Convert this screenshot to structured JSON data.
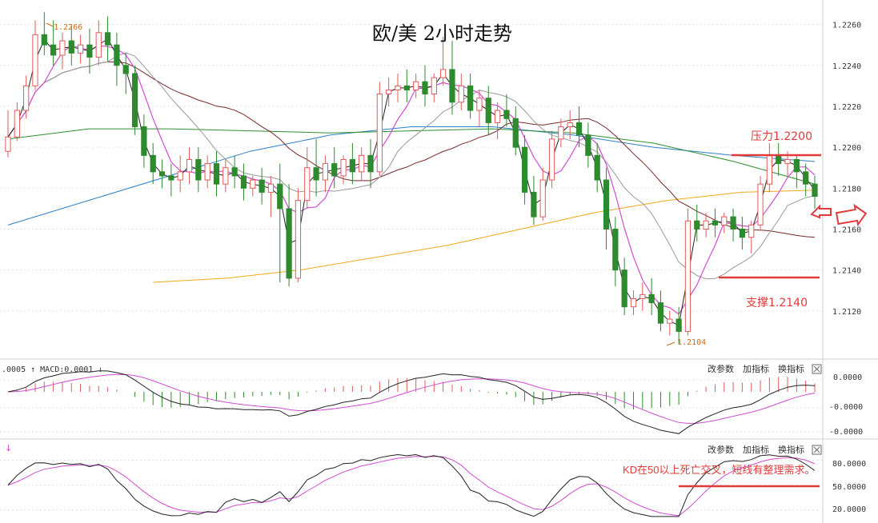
{
  "title": "欧/美 2小时走势",
  "chart_data": [
    {
      "type": "candlestick",
      "title": "欧/美 2小时走势",
      "ylim": [
        1.21,
        1.227
      ],
      "y_ticks": [
        "1.2260",
        "1.2240",
        "1.2220",
        "1.2200",
        "1.2180",
        "1.2160",
        "1.2140",
        "1.2120"
      ],
      "annotations": {
        "high": "1.2266",
        "low": "1.2104",
        "resistance": "压力1.2200",
        "support": "支撑1.2140"
      },
      "resistance_value": 1.22,
      "support_value": 1.214,
      "candles": [
        [
          1.2198,
          1.2218,
          1.2205,
          1.2195
        ],
        [
          1.2205,
          1.2222,
          1.2218,
          1.2203
        ],
        [
          1.2218,
          1.2235,
          1.223,
          1.2214
        ],
        [
          1.223,
          1.2262,
          1.2255,
          1.2228
        ],
        [
          1.2255,
          1.2266,
          1.225,
          1.2245
        ],
        [
          1.225,
          1.2262,
          1.2245,
          1.224
        ],
        [
          1.2245,
          1.2256,
          1.2252,
          1.2238
        ],
        [
          1.2252,
          1.226,
          1.2246,
          1.224
        ],
        [
          1.2246,
          1.2255,
          1.225,
          1.2241
        ],
        [
          1.225,
          1.2258,
          1.2244,
          1.2236
        ],
        [
          1.2244,
          1.2262,
          1.2256,
          1.224
        ],
        [
          1.2256,
          1.2264,
          1.225,
          1.2242
        ],
        [
          1.225,
          1.2256,
          1.224,
          1.223
        ],
        [
          1.224,
          1.2246,
          1.2236,
          1.2226
        ],
        [
          1.2236,
          1.224,
          1.221,
          1.2206
        ],
        [
          1.221,
          1.2216,
          1.2196,
          1.219
        ],
        [
          1.2196,
          1.2202,
          1.2188,
          1.2182
        ],
        [
          1.2188,
          1.2194,
          1.2186,
          1.218
        ],
        [
          1.2186,
          1.2192,
          1.2184,
          1.2176
        ],
        [
          1.2184,
          1.2196,
          1.2188,
          1.2178
        ],
        [
          1.2188,
          1.22,
          1.2194,
          1.2182
        ],
        [
          1.2194,
          1.22,
          1.2184,
          1.2178
        ],
        [
          1.2184,
          1.2196,
          1.2192,
          1.218
        ],
        [
          1.2192,
          1.2198,
          1.2182,
          1.2176
        ],
        [
          1.2182,
          1.2194,
          1.219,
          1.2178
        ],
        [
          1.219,
          1.2196,
          1.2186,
          1.218
        ],
        [
          1.2186,
          1.2192,
          1.218,
          1.2174
        ],
        [
          1.218,
          1.2186,
          1.2184,
          1.2176
        ],
        [
          1.2184,
          1.219,
          1.2178,
          1.2172
        ],
        [
          1.2178,
          1.2186,
          1.2182,
          1.2166
        ],
        [
          1.2182,
          1.2192,
          1.217,
          1.2134
        ],
        [
          1.217,
          1.2182,
          1.2136,
          1.2132
        ],
        [
          1.2136,
          1.218,
          1.2174,
          1.2134
        ],
        [
          1.2174,
          1.22,
          1.219,
          1.217
        ],
        [
          1.219,
          1.2204,
          1.2184,
          1.2176
        ],
        [
          1.2184,
          1.2196,
          1.2192,
          1.2178
        ],
        [
          1.2192,
          1.22,
          1.2186,
          1.218
        ],
        [
          1.2186,
          1.2196,
          1.2194,
          1.2182
        ],
        [
          1.2194,
          1.2202,
          1.2188,
          1.2182
        ],
        [
          1.2188,
          1.22,
          1.2196,
          1.2184
        ],
        [
          1.2196,
          1.2204,
          1.2188,
          1.218
        ],
        [
          1.2188,
          1.2232,
          1.2226,
          1.2186
        ],
        [
          1.2226,
          1.2234,
          1.2228,
          1.222
        ],
        [
          1.2228,
          1.2236,
          1.223,
          1.2222
        ],
        [
          1.223,
          1.2238,
          1.2228,
          1.2222
        ],
        [
          1.2228,
          1.2236,
          1.2232,
          1.2224
        ],
        [
          1.2232,
          1.224,
          1.2226,
          1.222
        ],
        [
          1.2226,
          1.2236,
          1.2234,
          1.2222
        ],
        [
          1.2234,
          1.2254,
          1.2238,
          1.223
        ],
        [
          1.2238,
          1.2252,
          1.2222,
          1.2216
        ],
        [
          1.2222,
          1.2236,
          1.223,
          1.2218
        ],
        [
          1.223,
          1.2236,
          1.2218,
          1.2214
        ],
        [
          1.2218,
          1.2228,
          1.2224,
          1.221
        ],
        [
          1.2224,
          1.223,
          1.2212,
          1.2206
        ],
        [
          1.2212,
          1.2222,
          1.2218,
          1.2204
        ],
        [
          1.2218,
          1.2226,
          1.2214,
          1.221
        ],
        [
          1.2214,
          1.222,
          1.22,
          1.2196
        ],
        [
          1.22,
          1.2206,
          1.2178,
          1.2172
        ],
        [
          1.2178,
          1.2186,
          1.2166,
          1.2162
        ],
        [
          1.2166,
          1.219,
          1.2184,
          1.2164
        ],
        [
          1.2184,
          1.2208,
          1.2204,
          1.218
        ],
        [
          1.2204,
          1.2214,
          1.221,
          1.22
        ],
        [
          1.221,
          1.2218,
          1.2212,
          1.2204
        ],
        [
          1.2212,
          1.222,
          1.2206,
          1.22
        ],
        [
          1.2206,
          1.2212,
          1.2196,
          1.219
        ],
        [
          1.2196,
          1.2202,
          1.2184,
          1.2178
        ],
        [
          1.2184,
          1.219,
          1.216,
          1.215
        ],
        [
          1.216,
          1.2166,
          1.214,
          1.2132
        ],
        [
          1.214,
          1.2146,
          1.2122,
          1.2118
        ],
        [
          1.2122,
          1.213,
          1.2126,
          1.2118
        ],
        [
          1.2126,
          1.2134,
          1.2128,
          1.212
        ],
        [
          1.2128,
          1.2136,
          1.2124,
          1.2118
        ],
        [
          1.2124,
          1.213,
          1.2114,
          1.211
        ],
        [
          1.2114,
          1.212,
          1.2116,
          1.2108
        ],
        [
          1.2116,
          1.2122,
          1.211,
          1.2104
        ],
        [
          1.211,
          1.217,
          1.2164,
          1.2108
        ],
        [
          1.2164,
          1.2172,
          1.216,
          1.2154
        ],
        [
          1.216,
          1.2168,
          1.2164,
          1.2156
        ],
        [
          1.2164,
          1.217,
          1.2162,
          1.2156
        ],
        [
          1.2162,
          1.2168,
          1.2166,
          1.2158
        ],
        [
          1.2166,
          1.217,
          1.216,
          1.2154
        ],
        [
          1.216,
          1.2166,
          1.2156,
          1.215
        ],
        [
          1.2156,
          1.2164,
          1.2162,
          1.2148
        ],
        [
          1.2162,
          1.2186,
          1.2182,
          1.216
        ],
        [
          1.2182,
          1.2202,
          1.2196,
          1.2178
        ],
        [
          1.2196,
          1.2202,
          1.2192,
          1.2186
        ],
        [
          1.2192,
          1.2198,
          1.2194,
          1.2186
        ],
        [
          1.2194,
          1.2196,
          1.2188,
          1.218
        ],
        [
          1.2188,
          1.2192,
          1.2182,
          1.2176
        ],
        [
          1.2182,
          1.2186,
          1.2176,
          1.217
        ]
      ]
    },
    {
      "type": "line",
      "title": "MACD",
      "legend_text": ".0005 ↑ MACD:0.0001 ↓",
      "y_ticks": [
        "0.0000",
        "-0.0000",
        "-0.0000"
      ],
      "buttons": [
        "改参数",
        "加指标",
        "换指标"
      ]
    },
    {
      "type": "line",
      "title": "KD",
      "legend_text": "↓",
      "y_ticks": [
        "80.0000",
        "50.0000",
        "20.0000"
      ],
      "ylim": [
        10,
        95
      ],
      "reference_line": 50,
      "annotation": "KD在50以上死亡交叉，短线有整理需求。",
      "buttons": [
        "改参数",
        "加指标",
        "换指标"
      ]
    }
  ],
  "colors": {
    "up": "#e25b5b",
    "down": "#2d8a2d",
    "ma_black": "#222222",
    "ma_magenta": "#d24cd2",
    "ma_gray": "#9a9a9a",
    "ma_brown": "#7a2a2a",
    "ma_green": "#2f8f2f",
    "ma_blue": "#2a7fc8",
    "ma_orange": "#f2a818",
    "annotation_red": "#e03a3a",
    "annotation_orange": "#d46a1a"
  }
}
